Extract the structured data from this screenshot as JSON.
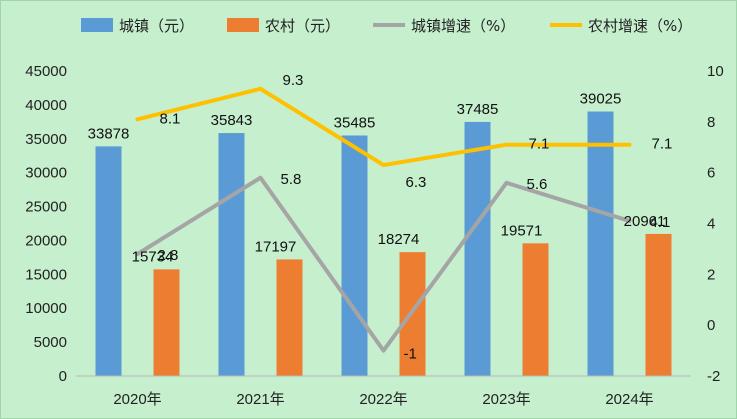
{
  "chart_data": {
    "type": "bar",
    "title": "",
    "xlabel": "",
    "ylabel": "",
    "y2label": "",
    "categories": [
      "2020年",
      "2021年",
      "2022年",
      "2023年",
      "2024年"
    ],
    "ylim": [
      0,
      45000
    ],
    "yticks": [
      0,
      5000,
      10000,
      15000,
      20000,
      25000,
      30000,
      35000,
      40000,
      45000
    ],
    "y2lim": [
      -2,
      10
    ],
    "y2ticks": [
      -2,
      0,
      2,
      4,
      6,
      8,
      10
    ],
    "grid": false,
    "legend_position": "top",
    "series": [
      {
        "name": "城镇（元）",
        "kind": "bar",
        "axis": "left",
        "color": "#5b9bd5",
        "values": [
          33878,
          35843,
          35485,
          37485,
          39025
        ]
      },
      {
        "name": "农村（元）",
        "kind": "bar",
        "axis": "left",
        "color": "#ed7d31",
        "values": [
          15734,
          17197,
          18274,
          19571,
          20961
        ]
      },
      {
        "name": "城镇增速（%）",
        "kind": "line",
        "axis": "right",
        "color": "#a5a5a5",
        "values": [
          2.8,
          5.8,
          -1,
          5.6,
          4.1
        ]
      },
      {
        "name": "农村增速（%）",
        "kind": "line",
        "axis": "right",
        "color": "#ffc000",
        "values": [
          8.1,
          9.3,
          6.3,
          7.1,
          7.1
        ]
      }
    ]
  }
}
